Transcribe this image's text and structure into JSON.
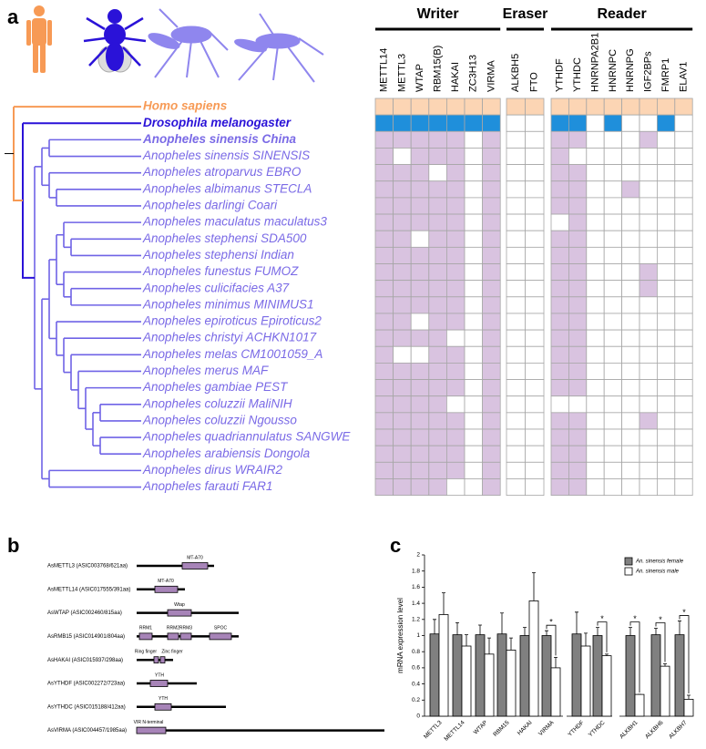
{
  "panel_a": {
    "panel_label": "a",
    "groups": [
      {
        "name": "Writer",
        "genes": [
          "METTL14",
          "METTL3",
          "WTAP",
          "RBM15(B)",
          "HAKAI",
          "ZC3H13",
          "VIRMA"
        ]
      },
      {
        "name": "Eraser",
        "genes": [
          "ALKBH5",
          "FTO"
        ]
      },
      {
        "name": "Reader",
        "genes": [
          "YTHDF",
          "YTHDC",
          "HNRNPA2B1",
          "HNRNPC",
          "HNRNPG",
          "IGF2BPs",
          "FMRP1",
          "ELAV1"
        ]
      }
    ],
    "rows": [
      {
        "species": "Homo sapiens",
        "label_color": "#f79a55",
        "cell_color": "#fcd5b4",
        "cells": [
          1,
          1,
          1,
          1,
          1,
          1,
          1,
          1,
          1,
          1,
          1,
          1,
          1,
          1,
          1,
          1,
          1
        ]
      },
      {
        "species": "Drosophila melanogaster",
        "label_color": "#2a12d8",
        "cell_color": "#1f8fdb",
        "cells": [
          1,
          1,
          1,
          1,
          1,
          1,
          1,
          0,
          0,
          1,
          1,
          0,
          1,
          0,
          0,
          1,
          0
        ]
      },
      {
        "species": "Anopheles sinensis China",
        "label_color": "#7a6ae6",
        "cell_color": "#d9c3e0",
        "cells": [
          1,
          1,
          1,
          1,
          1,
          0,
          1,
          0,
          0,
          1,
          1,
          0,
          0,
          0,
          1,
          0,
          0
        ]
      },
      {
        "species": "Anopheles sinensis SINENSIS",
        "label_color": "#7a6ae6",
        "cell_color": "#d9c3e0",
        "cells": [
          1,
          0,
          1,
          1,
          1,
          0,
          1,
          0,
          0,
          1,
          0,
          0,
          0,
          0,
          0,
          0,
          0
        ]
      },
      {
        "species": "Anopheles atroparvus EBRO",
        "label_color": "#7a6ae6",
        "cell_color": "#d9c3e0",
        "cells": [
          1,
          1,
          1,
          0,
          1,
          0,
          1,
          0,
          0,
          1,
          1,
          0,
          0,
          0,
          0,
          0,
          0
        ]
      },
      {
        "species": "Anopheles albimanus STECLA",
        "label_color": "#7a6ae6",
        "cell_color": "#d9c3e0",
        "cells": [
          1,
          1,
          1,
          1,
          1,
          0,
          1,
          0,
          0,
          1,
          1,
          0,
          0,
          1,
          0,
          0,
          0
        ]
      },
      {
        "species": "Anopheles darlingi Coari",
        "label_color": "#7a6ae6",
        "cell_color": "#d9c3e0",
        "cells": [
          1,
          1,
          1,
          1,
          1,
          0,
          1,
          0,
          0,
          1,
          1,
          0,
          0,
          0,
          0,
          0,
          0
        ]
      },
      {
        "species": "Anopheles maculatus maculatus3",
        "label_color": "#7a6ae6",
        "cell_color": "#d9c3e0",
        "cells": [
          1,
          1,
          1,
          1,
          1,
          0,
          1,
          0,
          0,
          0,
          1,
          0,
          0,
          0,
          0,
          0,
          0
        ]
      },
      {
        "species": "Anopheles stephensi SDA500",
        "label_color": "#7a6ae6",
        "cell_color": "#d9c3e0",
        "cells": [
          1,
          1,
          0,
          1,
          1,
          0,
          1,
          0,
          0,
          1,
          1,
          0,
          0,
          0,
          0,
          0,
          0
        ]
      },
      {
        "species": "Anopheles stephensi Indian",
        "label_color": "#7a6ae6",
        "cell_color": "#d9c3e0",
        "cells": [
          1,
          1,
          1,
          1,
          1,
          0,
          1,
          0,
          0,
          1,
          1,
          0,
          0,
          0,
          0,
          0,
          0
        ]
      },
      {
        "species": "Anopheles funestus FUMOZ",
        "label_color": "#7a6ae6",
        "cell_color": "#d9c3e0",
        "cells": [
          1,
          1,
          1,
          1,
          1,
          0,
          1,
          0,
          0,
          1,
          1,
          0,
          0,
          0,
          1,
          0,
          0
        ]
      },
      {
        "species": "Anopheles culicifacies A37",
        "label_color": "#7a6ae6",
        "cell_color": "#d9c3e0",
        "cells": [
          1,
          1,
          1,
          1,
          1,
          0,
          1,
          0,
          0,
          1,
          1,
          0,
          0,
          0,
          1,
          0,
          0
        ]
      },
      {
        "species": "Anopheles minimus MINIMUS1",
        "label_color": "#7a6ae6",
        "cell_color": "#d9c3e0",
        "cells": [
          1,
          1,
          1,
          1,
          1,
          0,
          1,
          0,
          0,
          1,
          1,
          0,
          0,
          0,
          0,
          0,
          0
        ]
      },
      {
        "species": "Anopheles epiroticus Epiroticus2",
        "label_color": "#7a6ae6",
        "cell_color": "#d9c3e0",
        "cells": [
          1,
          1,
          0,
          1,
          1,
          0,
          1,
          0,
          0,
          1,
          1,
          0,
          0,
          0,
          0,
          0,
          0
        ]
      },
      {
        "species": "Anopheles christyi ACHKN1017",
        "label_color": "#7a6ae6",
        "cell_color": "#d9c3e0",
        "cells": [
          1,
          1,
          1,
          1,
          0,
          0,
          1,
          0,
          0,
          1,
          1,
          0,
          0,
          0,
          0,
          0,
          0
        ]
      },
      {
        "species": "Anopheles melas CM1001059_A",
        "label_color": "#7a6ae6",
        "cell_color": "#d9c3e0",
        "cells": [
          1,
          0,
          0,
          1,
          1,
          0,
          1,
          0,
          0,
          1,
          1,
          0,
          0,
          0,
          0,
          0,
          0
        ]
      },
      {
        "species": "Anopheles merus MAF",
        "label_color": "#7a6ae6",
        "cell_color": "#d9c3e0",
        "cells": [
          1,
          1,
          1,
          1,
          1,
          0,
          1,
          0,
          0,
          1,
          1,
          0,
          0,
          0,
          0,
          0,
          0
        ]
      },
      {
        "species": "Anopheles gambiae PEST",
        "label_color": "#7a6ae6",
        "cell_color": "#d9c3e0",
        "cells": [
          1,
          1,
          1,
          1,
          1,
          0,
          1,
          0,
          0,
          1,
          1,
          0,
          0,
          0,
          0,
          0,
          0
        ]
      },
      {
        "species": "Anopheles coluzzii MaliNIH",
        "label_color": "#7a6ae6",
        "cell_color": "#d9c3e0",
        "cells": [
          1,
          1,
          1,
          1,
          0,
          0,
          1,
          0,
          0,
          0,
          0,
          0,
          0,
          0,
          0,
          0,
          0
        ]
      },
      {
        "species": "Anopheles coluzzii Ngousso",
        "label_color": "#7a6ae6",
        "cell_color": "#d9c3e0",
        "cells": [
          1,
          1,
          1,
          1,
          1,
          0,
          1,
          0,
          0,
          1,
          1,
          0,
          0,
          0,
          1,
          0,
          0
        ]
      },
      {
        "species": "Anopheles quadriannulatus SANGWE",
        "label_color": "#7a6ae6",
        "cell_color": "#d9c3e0",
        "cells": [
          1,
          1,
          1,
          1,
          1,
          0,
          1,
          0,
          0,
          1,
          1,
          0,
          0,
          0,
          0,
          0,
          0
        ]
      },
      {
        "species": "Anopheles arabiensis Dongola",
        "label_color": "#7a6ae6",
        "cell_color": "#d9c3e0",
        "cells": [
          1,
          1,
          1,
          1,
          1,
          0,
          1,
          0,
          0,
          1,
          1,
          0,
          0,
          0,
          0,
          0,
          0
        ]
      },
      {
        "species": "Anopheles dirus WRAIR2",
        "label_color": "#7a6ae6",
        "cell_color": "#d9c3e0",
        "cells": [
          1,
          1,
          1,
          1,
          1,
          0,
          1,
          0,
          0,
          1,
          1,
          0,
          0,
          0,
          0,
          0,
          0
        ]
      },
      {
        "species": "Anopheles farauti FAR1",
        "label_color": "#7a6ae6",
        "cell_color": "#d9c3e0",
        "cells": [
          1,
          1,
          1,
          1,
          0,
          0,
          1,
          0,
          0,
          1,
          1,
          0,
          0,
          0,
          0,
          0,
          0
        ]
      }
    ]
  },
  "panel_b": {
    "panel_label": "b",
    "proteins": [
      {
        "name": "AsMETTL3 (ASIC003768/621aa)",
        "domains": [
          "MT-A70"
        ]
      },
      {
        "name": "AsMETTL14 (ASIC017555/391aa)",
        "domains": [
          "MT-A70"
        ]
      },
      {
        "name": "AsWTAP (ASIC002460/815aa)",
        "domains": [
          "Wtap"
        ]
      },
      {
        "name": "AsRMB15 (ASIC014901/804aa)",
        "domains": [
          "RRM1",
          "RRM2",
          "RRM3",
          "SPOC"
        ]
      },
      {
        "name": "AsHAKAI (ASIC015937/298aa)",
        "domains": [
          "Ring finger",
          "Zinc finger"
        ]
      },
      {
        "name": "AsYTHDF (ASIC002272/723aa)",
        "domains": [
          "YTH"
        ]
      },
      {
        "name": "AsYTHDC (ASIC015188/412aa)",
        "domains": [
          "YTH"
        ]
      },
      {
        "name": "AsVIRMA (ASIC004457/1985aa)",
        "domains": [
          "VIR N-terminal"
        ]
      }
    ]
  },
  "chart_data": {
    "type": "bar",
    "panel_label": "c",
    "y_label": "mRNA expression level",
    "categories": [
      "METTL3",
      "METTL14",
      "WTAP",
      "RBM15",
      "HAKAI",
      "VIRMA",
      "YTHDF",
      "YTHDC",
      "ALKBH1",
      "ALKBH6",
      "ALKBH7"
    ],
    "series": [
      {
        "name": "An. sinensis female",
        "color": "#808080",
        "values": [
          1.02,
          1.01,
          1.01,
          1.02,
          1.0,
          1.0,
          1.02,
          1.0,
          1.0,
          1.01,
          1.01
        ],
        "errors": [
          0.18,
          0.15,
          0.12,
          0.26,
          0.1,
          0.06,
          0.27,
          0.1,
          0.1,
          0.08,
          0.17
        ]
      },
      {
        "name": "An. sinensis male",
        "color": "#ffffff",
        "values": [
          1.26,
          0.87,
          0.77,
          0.82,
          1.43,
          0.6,
          0.87,
          0.75,
          0.27,
          0.62,
          0.21
        ],
        "errors": [
          0.27,
          0.14,
          0.2,
          0.15,
          0.35,
          0.13,
          0.16,
          0.02,
          0.0,
          0.03,
          0.05
        ]
      }
    ],
    "ylim": [
      0,
      2
    ],
    "yticks": [
      0,
      0.2,
      0.4,
      0.6,
      0.8,
      1,
      1.2,
      1.4,
      1.6,
      1.8,
      2
    ],
    "significance_marker": "*",
    "significant": [
      false,
      false,
      false,
      false,
      false,
      true,
      false,
      true,
      true,
      true,
      true
    ]
  }
}
